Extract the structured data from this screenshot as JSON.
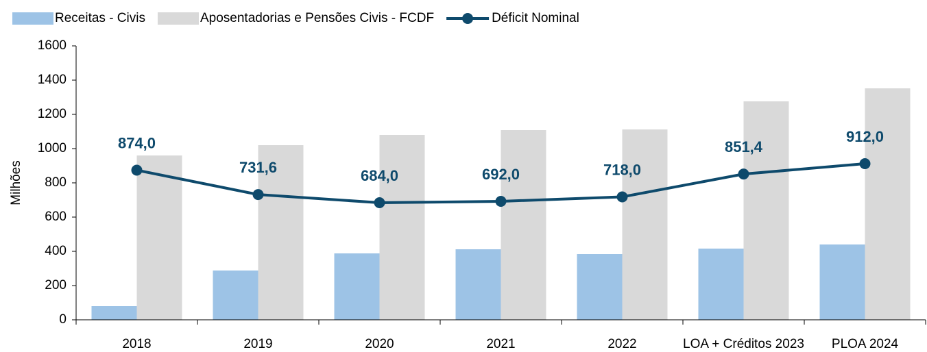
{
  "chart_data": {
    "type": "bar_line",
    "categories": [
      "2018",
      "2019",
      "2020",
      "2021",
      "2022",
      "LOA + Créditos 2023",
      "PLOA 2024"
    ],
    "y_label": "Milhões",
    "ylim": [
      0,
      1600
    ],
    "yticks": [
      0,
      200,
      400,
      600,
      800,
      1000,
      1200,
      1400,
      1600
    ],
    "legend": "top",
    "series": [
      {
        "name": "Receitas - Civis",
        "type": "bar",
        "color": "#9dc3e6",
        "values": [
          80,
          288,
          388,
          412,
          384,
          416,
          440
        ]
      },
      {
        "name": "Aposentadorias e Pensões Civis - FCDF",
        "type": "bar",
        "color": "#d9d9d9",
        "values": [
          960,
          1020,
          1080,
          1108,
          1112,
          1276,
          1352
        ]
      },
      {
        "name": "Déficit Nominal",
        "type": "line",
        "color": "#0e4a6c",
        "values": [
          874.0,
          731.6,
          684.0,
          692.0,
          718.0,
          851.4,
          912.0
        ],
        "value_labels": [
          "874,0",
          "731,6",
          "684,0",
          "692,0",
          "718,0",
          "851,4",
          "912,0"
        ]
      }
    ]
  }
}
